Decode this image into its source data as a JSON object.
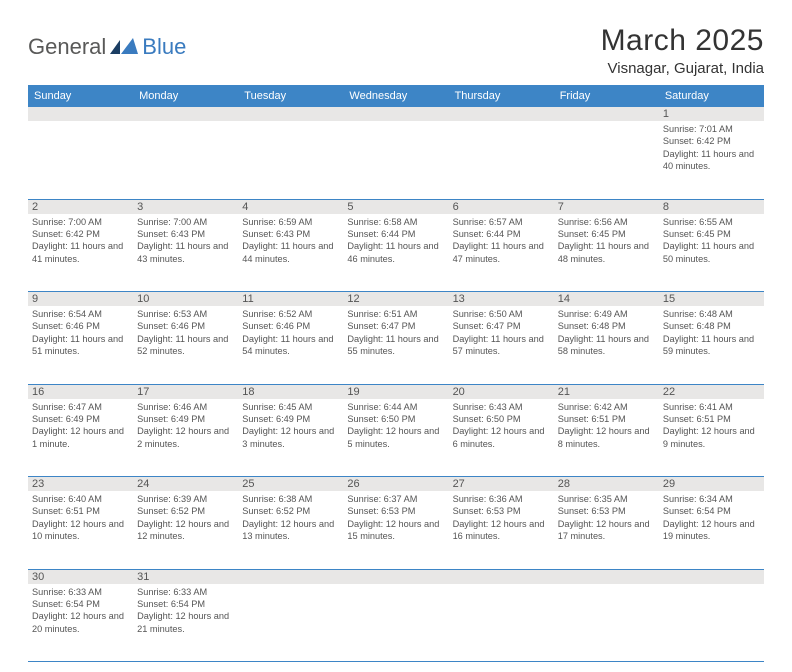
{
  "logo": {
    "part1": "General",
    "part2": "Blue",
    "primary_color": "#3a7bbf",
    "text_color": "#595958"
  },
  "title": "March 2025",
  "location": "Visnagar, Gujarat, India",
  "header_bg": "#3d85c6",
  "weekdays": [
    "Sunday",
    "Monday",
    "Tuesday",
    "Wednesday",
    "Thursday",
    "Friday",
    "Saturday"
  ],
  "grid": [
    [
      null,
      null,
      null,
      null,
      null,
      null,
      {
        "n": "1",
        "sr": "7:01 AM",
        "ss": "6:42 PM",
        "dl": "11 hours and 40 minutes."
      }
    ],
    [
      {
        "n": "2",
        "sr": "7:00 AM",
        "ss": "6:42 PM",
        "dl": "11 hours and 41 minutes."
      },
      {
        "n": "3",
        "sr": "7:00 AM",
        "ss": "6:43 PM",
        "dl": "11 hours and 43 minutes."
      },
      {
        "n": "4",
        "sr": "6:59 AM",
        "ss": "6:43 PM",
        "dl": "11 hours and 44 minutes."
      },
      {
        "n": "5",
        "sr": "6:58 AM",
        "ss": "6:44 PM",
        "dl": "11 hours and 46 minutes."
      },
      {
        "n": "6",
        "sr": "6:57 AM",
        "ss": "6:44 PM",
        "dl": "11 hours and 47 minutes."
      },
      {
        "n": "7",
        "sr": "6:56 AM",
        "ss": "6:45 PM",
        "dl": "11 hours and 48 minutes."
      },
      {
        "n": "8",
        "sr": "6:55 AM",
        "ss": "6:45 PM",
        "dl": "11 hours and 50 minutes."
      }
    ],
    [
      {
        "n": "9",
        "sr": "6:54 AM",
        "ss": "6:46 PM",
        "dl": "11 hours and 51 minutes."
      },
      {
        "n": "10",
        "sr": "6:53 AM",
        "ss": "6:46 PM",
        "dl": "11 hours and 52 minutes."
      },
      {
        "n": "11",
        "sr": "6:52 AM",
        "ss": "6:46 PM",
        "dl": "11 hours and 54 minutes."
      },
      {
        "n": "12",
        "sr": "6:51 AM",
        "ss": "6:47 PM",
        "dl": "11 hours and 55 minutes."
      },
      {
        "n": "13",
        "sr": "6:50 AM",
        "ss": "6:47 PM",
        "dl": "11 hours and 57 minutes."
      },
      {
        "n": "14",
        "sr": "6:49 AM",
        "ss": "6:48 PM",
        "dl": "11 hours and 58 minutes."
      },
      {
        "n": "15",
        "sr": "6:48 AM",
        "ss": "6:48 PM",
        "dl": "11 hours and 59 minutes."
      }
    ],
    [
      {
        "n": "16",
        "sr": "6:47 AM",
        "ss": "6:49 PM",
        "dl": "12 hours and 1 minute."
      },
      {
        "n": "17",
        "sr": "6:46 AM",
        "ss": "6:49 PM",
        "dl": "12 hours and 2 minutes."
      },
      {
        "n": "18",
        "sr": "6:45 AM",
        "ss": "6:49 PM",
        "dl": "12 hours and 3 minutes."
      },
      {
        "n": "19",
        "sr": "6:44 AM",
        "ss": "6:50 PM",
        "dl": "12 hours and 5 minutes."
      },
      {
        "n": "20",
        "sr": "6:43 AM",
        "ss": "6:50 PM",
        "dl": "12 hours and 6 minutes."
      },
      {
        "n": "21",
        "sr": "6:42 AM",
        "ss": "6:51 PM",
        "dl": "12 hours and 8 minutes."
      },
      {
        "n": "22",
        "sr": "6:41 AM",
        "ss": "6:51 PM",
        "dl": "12 hours and 9 minutes."
      }
    ],
    [
      {
        "n": "23",
        "sr": "6:40 AM",
        "ss": "6:51 PM",
        "dl": "12 hours and 10 minutes."
      },
      {
        "n": "24",
        "sr": "6:39 AM",
        "ss": "6:52 PM",
        "dl": "12 hours and 12 minutes."
      },
      {
        "n": "25",
        "sr": "6:38 AM",
        "ss": "6:52 PM",
        "dl": "12 hours and 13 minutes."
      },
      {
        "n": "26",
        "sr": "6:37 AM",
        "ss": "6:53 PM",
        "dl": "12 hours and 15 minutes."
      },
      {
        "n": "27",
        "sr": "6:36 AM",
        "ss": "6:53 PM",
        "dl": "12 hours and 16 minutes."
      },
      {
        "n": "28",
        "sr": "6:35 AM",
        "ss": "6:53 PM",
        "dl": "12 hours and 17 minutes."
      },
      {
        "n": "29",
        "sr": "6:34 AM",
        "ss": "6:54 PM",
        "dl": "12 hours and 19 minutes."
      }
    ],
    [
      {
        "n": "30",
        "sr": "6:33 AM",
        "ss": "6:54 PM",
        "dl": "12 hours and 20 minutes."
      },
      {
        "n": "31",
        "sr": "6:33 AM",
        "ss": "6:54 PM",
        "dl": "12 hours and 21 minutes."
      },
      null,
      null,
      null,
      null,
      null
    ]
  ],
  "labels": {
    "sunrise": "Sunrise:",
    "sunset": "Sunset:",
    "daylight": "Daylight:"
  }
}
